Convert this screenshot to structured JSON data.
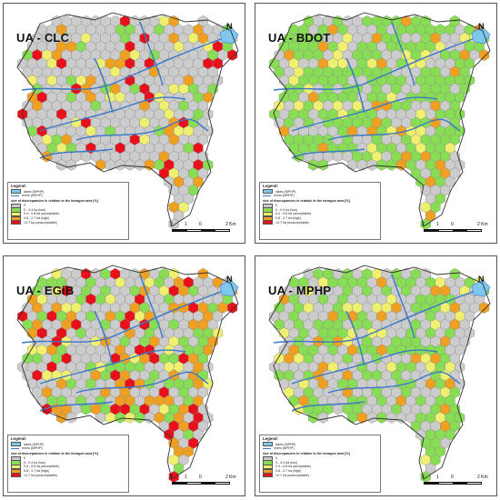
{
  "panels": [
    {
      "title": "UA - CLC",
      "key": "clc"
    },
    {
      "title": "UA - BDOT",
      "key": "bdot"
    },
    {
      "title": "UA - EGiB",
      "key": "egib"
    },
    {
      "title": "UA - MPHP",
      "key": "mphp"
    }
  ],
  "legend": {
    "title": "Legend:",
    "water_label": "lakes (MPHP)",
    "river_label": "rivers (MPHP)",
    "header": "size of discrepancies in relation to the hexagon area [%]",
    "classes": [
      {
        "label": "0",
        "color": "#cccccc"
      },
      {
        "label": "0 - 0.4 ha (low)",
        "color": "#88dd55"
      },
      {
        "label": "0.4 - 0.8 ha (acceptable)",
        "color": "#f0f070"
      },
      {
        "label": "0.8 - 2.7 ha (high)",
        "color": "#f0a020"
      },
      {
        "label": ">2.7 ha (unacceptable)",
        "color": "#e8101a"
      }
    ]
  },
  "scale": {
    "labels": [
      "2",
      "1",
      "0",
      "2 Km"
    ]
  },
  "north": "N",
  "colors": {
    "water": "#7ec8f0",
    "river": "#3a78c8",
    "hex_stroke": "#8a8a8a"
  }
}
